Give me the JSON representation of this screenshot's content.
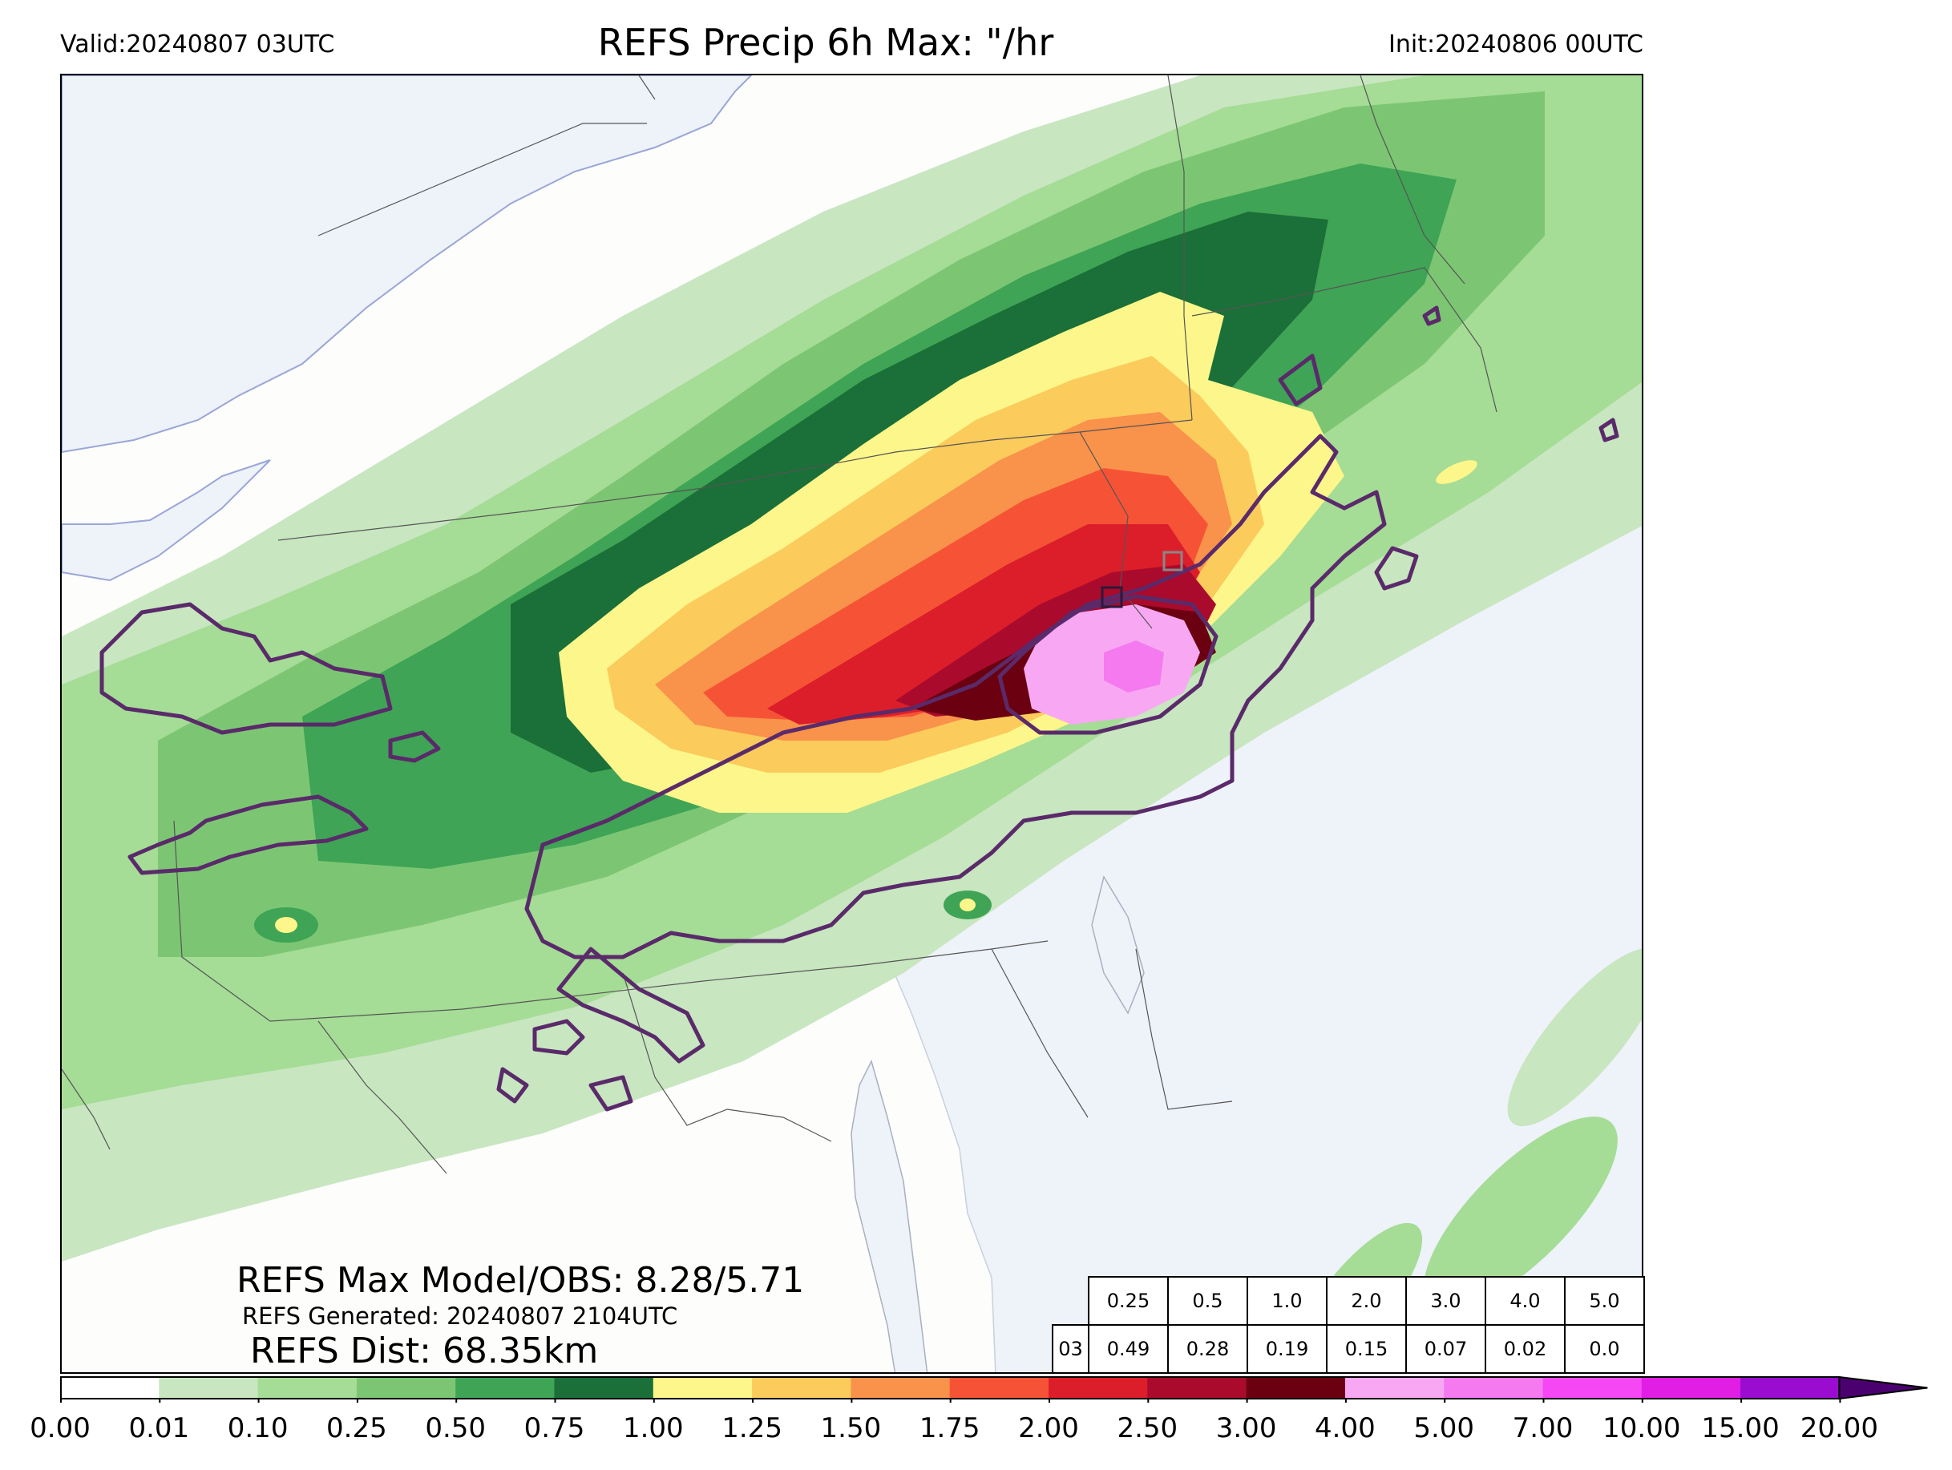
{
  "header": {
    "valid": "Valid:20240807 03UTC",
    "title": "REFS Precip 6h Max: \"/hr",
    "init": "Init:20240806 00UTC"
  },
  "stats": {
    "max_model_obs": "REFS Max Model/OBS: 8.28/5.71",
    "generated": "REFS Generated: 20240807 2104UTC",
    "dist": "REFS Dist: 68.35km"
  },
  "threshold_table": {
    "thresholds": [
      "0.25",
      "0.5",
      "1.0",
      "2.0",
      "3.0",
      "4.0",
      "5.0"
    ],
    "row_label": "03",
    "values": [
      "0.49",
      "0.28",
      "0.19",
      "0.15",
      "0.07",
      "0.02",
      "0.0"
    ]
  },
  "colorbar": {
    "ticks": [
      "0.00",
      "0.01",
      "0.10",
      "0.25",
      "0.50",
      "0.75",
      "1.00",
      "1.25",
      "1.50",
      "1.75",
      "2.00",
      "2.50",
      "3.00",
      "4.00",
      "5.00",
      "7.00",
      "10.00",
      "15.00",
      "20.00"
    ],
    "colors": [
      "#ffffff",
      "#c8e6c0",
      "#a5dc96",
      "#7cc673",
      "#3fa455",
      "#1b6f38",
      "#fdf68a",
      "#fbcb5c",
      "#f9924a",
      "#f65336",
      "#db1e2a",
      "#aa0a2c",
      "#6b0010",
      "#f8a8f3",
      "#f57af0",
      "#f647f5",
      "#e11ee4",
      "#9a0cd0"
    ],
    "extend_color": "#4b0070"
  },
  "map": {
    "water_color": "#eef2f9",
    "land_color": "#fdfdfc",
    "contour_color": "#5a2a6a"
  }
}
